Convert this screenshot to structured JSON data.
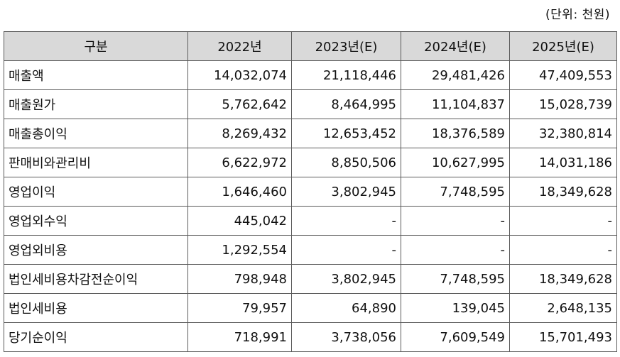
{
  "unit_note": "(단위: 천원)",
  "header": {
    "category": "구분",
    "cols": [
      "2022년",
      "2023년(E)",
      "2024년(E)",
      "2025년(E)"
    ]
  },
  "rows": [
    {
      "label": "매출액",
      "values": [
        "14,032,074",
        "21,118,446",
        "29,481,426",
        "47,409,553"
      ]
    },
    {
      "label": "매출원가",
      "values": [
        "5,762,642",
        "8,464,995",
        "11,104,837",
        "15,028,739"
      ]
    },
    {
      "label": "매출총이익",
      "values": [
        "8,269,432",
        "12,653,452",
        "18,376,589",
        "32,380,814"
      ]
    },
    {
      "label": "판매비와관리비",
      "values": [
        "6,622,972",
        "8,850,506",
        "10,627,995",
        "14,031,186"
      ]
    },
    {
      "label": "영업이익",
      "values": [
        "1,646,460",
        "3,802,945",
        "7,748,595",
        "18,349,628"
      ]
    },
    {
      "label": "영업외수익",
      "values": [
        "445,042",
        "-",
        "-",
        "-"
      ]
    },
    {
      "label": "영업외비용",
      "values": [
        "1,292,554",
        "-",
        "-",
        "-"
      ]
    },
    {
      "label": "법인세비용차감전순이익",
      "values": [
        "798,948",
        "3,802,945",
        "7,748,595",
        "18,349,628"
      ]
    },
    {
      "label": "법인세비용",
      "values": [
        "79,957",
        "64,890",
        "139,045",
        "2,648,135"
      ]
    },
    {
      "label": "당기순이익",
      "values": [
        "718,991",
        "3,738,056",
        "7,609,549",
        "15,701,493"
      ]
    }
  ]
}
